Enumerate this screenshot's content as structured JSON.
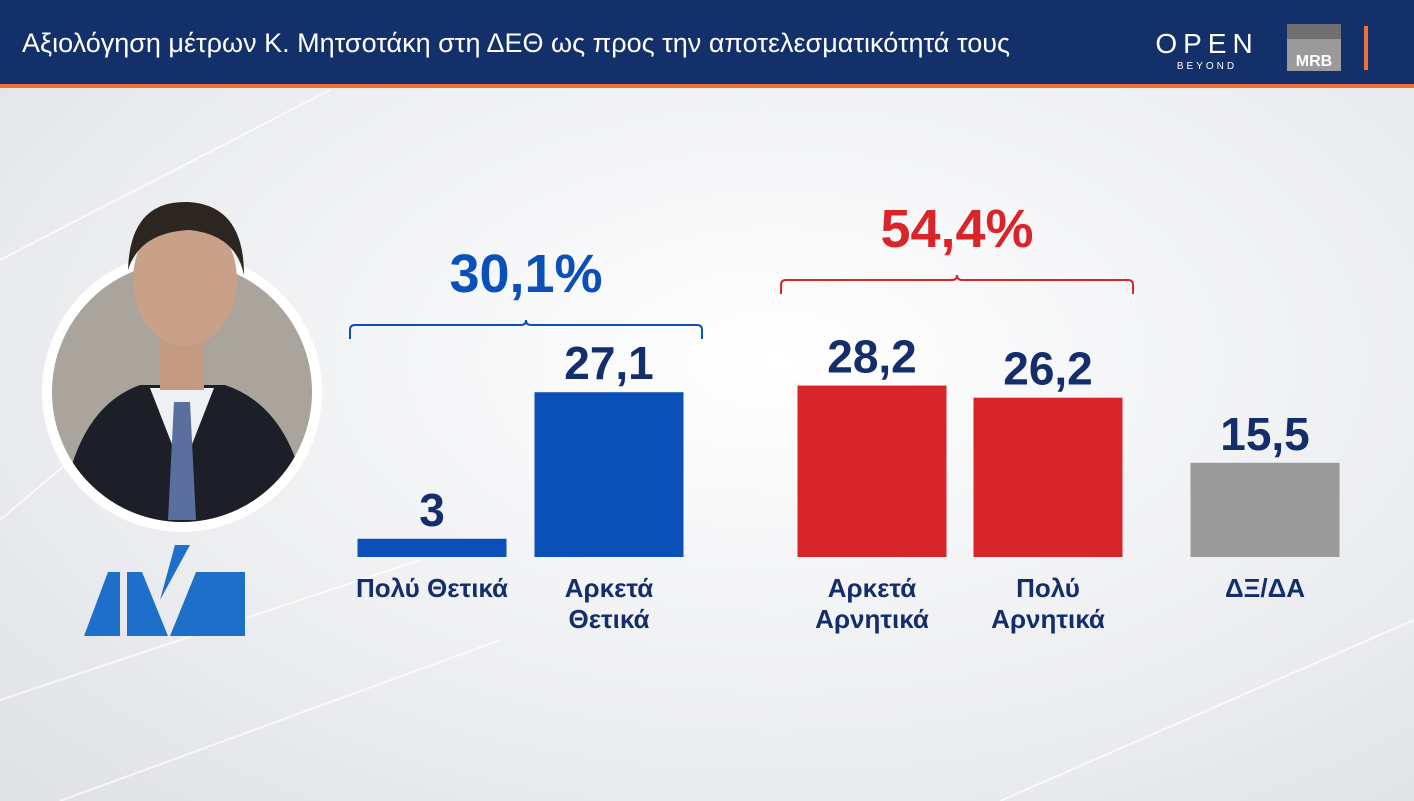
{
  "chart_data": {
    "type": "bar",
    "title": "Αξιολόγηση μέτρων Κ. Μητσοτάκη στη ΔΕΘ ως προς την αποτελεσματικότητά τους",
    "categories": [
      "Πολύ Θετικά",
      "Αρκετά Θετικά",
      "Αρκετά Αρνητικά",
      "Πολύ Αρνητικά",
      "ΔΞ/ΔΑ"
    ],
    "values": [
      3,
      27.1,
      28.2,
      26.2,
      15.5
    ],
    "value_labels": [
      "3",
      "27,1",
      "28,2",
      "26,2",
      "15,5"
    ],
    "colors": [
      "#0b4fb9",
      "#0b4fb9",
      "#d9252a",
      "#d9252a",
      "#9a9a9a"
    ],
    "annotations": [
      {
        "label": "30,1%",
        "value": 30.1,
        "color": "#0b4fb9"
      },
      {
        "label": "54,4%",
        "value": 54.4,
        "color": "#d9252a"
      }
    ]
  },
  "branding": {
    "channel": "OPEN",
    "channel_sub": "BEYOND",
    "pollster": "MRB"
  }
}
